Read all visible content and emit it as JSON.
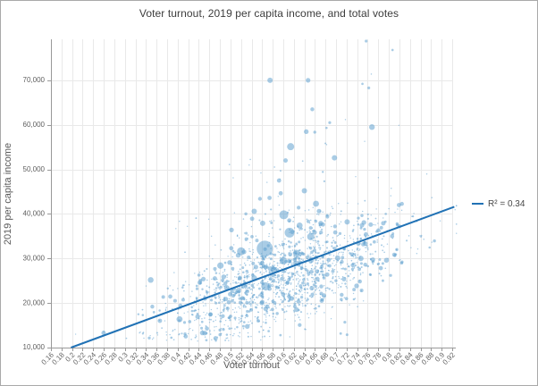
{
  "colors": {
    "background": "#ffffff",
    "border": "#a9a9a9",
    "grid": "#e9e9e9",
    "axis": "#999999",
    "tick_text": "#606060",
    "title_text": "#3c3c3c",
    "axis_title_text": "#5a5a5a",
    "legend_text": "#474747",
    "trend": "#2172b5",
    "bubble": "#62a2cf"
  },
  "chart_data": {
    "type": "scatter",
    "title": "Voter turnout, 2019 per capita income, and total votes",
    "xlabel": "Voter turnout",
    "ylabel": "2019 per capita income",
    "xlim": [
      0.16,
      0.92
    ],
    "ylim": [
      10000,
      79200
    ],
    "grid": true,
    "x_ticks": [
      0.16,
      0.18,
      0.2,
      0.22,
      0.24,
      0.26,
      0.28,
      0.3,
      0.32,
      0.34,
      0.36,
      0.38,
      0.4,
      0.42,
      0.44,
      0.46,
      0.48,
      0.5,
      0.52,
      0.54,
      0.56,
      0.58,
      0.6,
      0.62,
      0.64,
      0.66,
      0.68,
      0.7,
      0.72,
      0.74,
      0.76,
      0.78,
      0.8,
      0.82,
      0.84,
      0.86,
      0.88,
      0.9,
      0.92
    ],
    "x_tick_labels": [
      "0.16",
      "0.18",
      "0.2",
      "0.22",
      "0.24",
      "0.26",
      "0.28",
      "0.3",
      "0.32",
      "0.34",
      "0.36",
      "0.38",
      "0.4",
      "0.42",
      "0.44",
      "0.46",
      "0.48",
      "0.5",
      "0.52",
      "0.54",
      "0.56",
      "0.58",
      "0.6",
      "0.62",
      "0.64",
      "0.66",
      "0.68",
      "0.7",
      "0.72",
      "0.74",
      "0.76",
      "0.78",
      "0.8",
      "0.82",
      "0.84",
      "0.86",
      "0.88",
      "0.9",
      "0.92"
    ],
    "y_ticks": [
      10000,
      20000,
      30000,
      40000,
      50000,
      60000,
      70000
    ],
    "y_tick_labels": [
      "10,000",
      "20,000",
      "30,000",
      "40,000",
      "50,000",
      "60,000",
      "70,000"
    ],
    "legend": {
      "label": "R² = 0.34",
      "position": "right-middle"
    },
    "trendline": {
      "x1": 0.198,
      "y1": 10000,
      "x2": 0.924,
      "y2": 41600,
      "r_squared": 0.34
    },
    "bubble_opacity": 0.55,
    "featured_points": [
      {
        "x": 0.565,
        "y": 32200,
        "r": 9
      },
      {
        "x": 0.612,
        "y": 35800,
        "r": 5.5
      },
      {
        "x": 0.601,
        "y": 39800,
        "r": 5
      },
      {
        "x": 0.52,
        "y": 31600,
        "r": 4.5
      },
      {
        "x": 0.614,
        "y": 55100,
        "r": 4
      },
      {
        "x": 0.575,
        "y": 70000,
        "r": 3
      },
      {
        "x": 0.647,
        "y": 70000,
        "r": 2.6
      },
      {
        "x": 0.768,
        "y": 59500,
        "r": 3.2
      },
      {
        "x": 0.697,
        "y": 52600,
        "r": 3
      },
      {
        "x": 0.757,
        "y": 78800,
        "r": 1.6
      },
      {
        "x": 0.807,
        "y": 76800,
        "r": 1.3
      },
      {
        "x": 0.75,
        "y": 69200,
        "r": 1.3
      },
      {
        "x": 0.762,
        "y": 68300,
        "r": 1.6
      },
      {
        "x": 0.655,
        "y": 63500,
        "r": 2.2
      },
      {
        "x": 0.688,
        "y": 60500,
        "r": 1.6
      },
      {
        "x": 0.592,
        "y": 47500,
        "r": 2.4
      },
      {
        "x": 0.64,
        "y": 45200,
        "r": 3
      },
      {
        "x": 0.662,
        "y": 42300,
        "r": 3.4
      },
      {
        "x": 0.574,
        "y": 43600,
        "r": 2.4
      },
      {
        "x": 0.545,
        "y": 40600,
        "r": 3
      },
      {
        "x": 0.502,
        "y": 36400,
        "r": 2.6
      },
      {
        "x": 0.561,
        "y": 37900,
        "r": 3
      },
      {
        "x": 0.631,
        "y": 37400,
        "r": 3.4
      },
      {
        "x": 0.652,
        "y": 34900,
        "r": 4
      },
      {
        "x": 0.481,
        "y": 28400,
        "r": 3.6
      },
      {
        "x": 0.442,
        "y": 24600,
        "r": 2.6
      },
      {
        "x": 0.352,
        "y": 19200,
        "r": 2.2
      },
      {
        "x": 0.721,
        "y": 38200,
        "r": 3
      },
      {
        "x": 0.742,
        "y": 33400,
        "r": 2.6
      },
      {
        "x": 0.703,
        "y": 30100,
        "r": 3
      },
      {
        "x": 0.6,
        "y": 29500,
        "r": 4.2
      },
      {
        "x": 0.582,
        "y": 27400,
        "r": 3.6
      },
      {
        "x": 0.625,
        "y": 31200,
        "r": 3.8
      },
      {
        "x": 0.545,
        "y": 25600,
        "r": 3.2
      },
      {
        "x": 0.515,
        "y": 22800,
        "r": 3
      }
    ],
    "cloud": {
      "count": 1600,
      "seed": 7,
      "x_mean": 0.602,
      "x_sd": 0.107,
      "x_min": 0.172,
      "x_max": 0.928,
      "base_intercept": 1250,
      "base_slope": 43750,
      "y_shift": -1700,
      "y_sd": 5300,
      "tail_p": 0.07,
      "tail_exp": 1.6,
      "tail_max": 30000,
      "y_min": 11400,
      "y_max": 78000,
      "r_base": 0.7,
      "r_var": 2.0,
      "r_pow": 5,
      "big_p": 0.03,
      "big_mult": 1.8
    }
  }
}
